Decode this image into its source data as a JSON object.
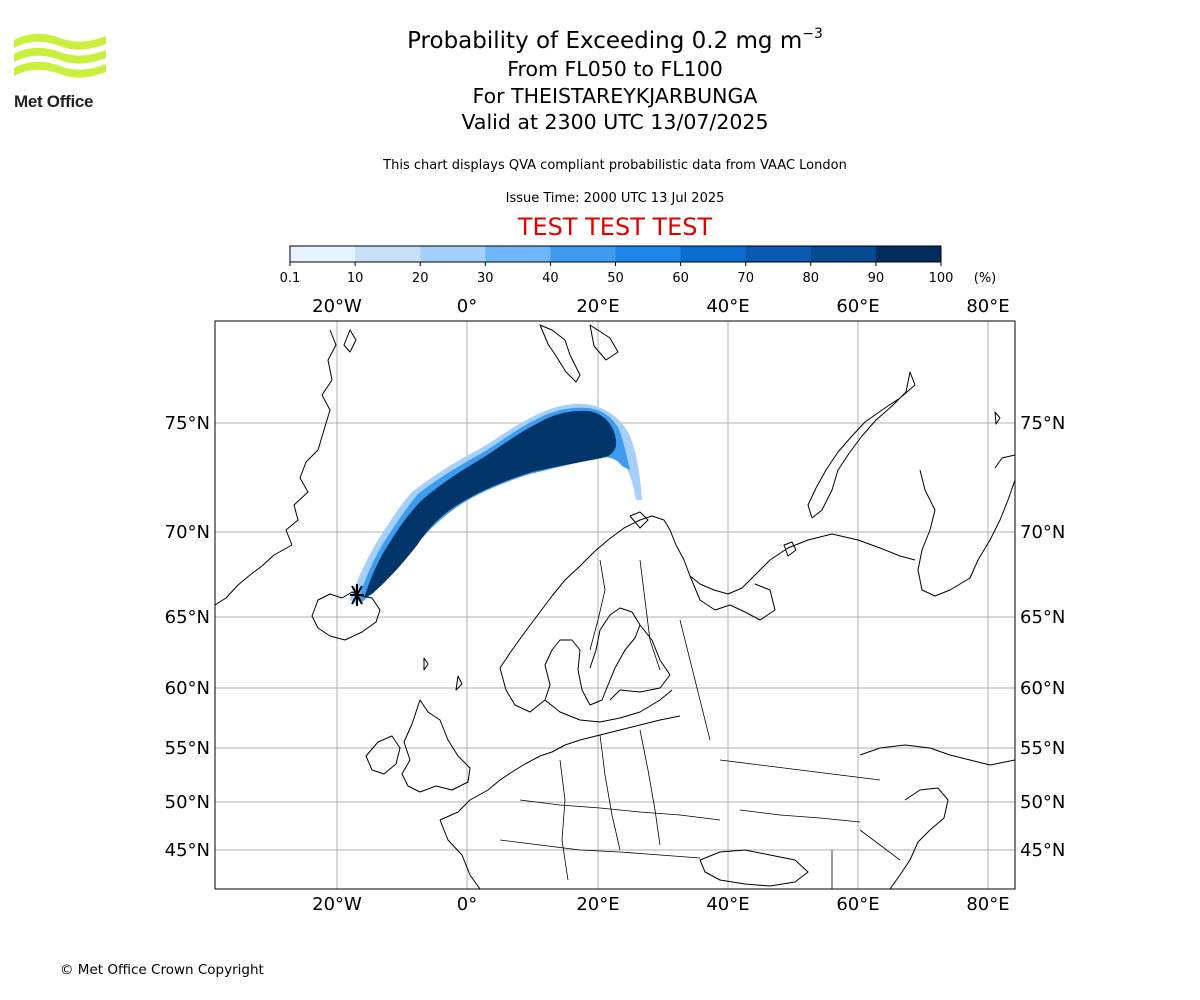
{
  "header": {
    "org_name": "Met Office",
    "title_prefix": "Probability of Exceeding 0.2 mg m",
    "title_exponent": "−3",
    "flight_levels": "From FL050 to FL100",
    "volcano": "For THEISTAREYKJARBUNGA",
    "valid_time": "Valid at 2300 UTC 13/07/2025",
    "description": "This chart displays QVA compliant probabilistic data from VAAC London",
    "issue_time": "Issue Time: 2000 UTC 13 Jul 2025",
    "test_banner": "TEST TEST TEST"
  },
  "legend": {
    "unit": "(%)",
    "ticks": [
      "0.1",
      "10",
      "20",
      "30",
      "40",
      "50",
      "60",
      "70",
      "80",
      "90",
      "100"
    ],
    "colors": [
      "#e6f2ff",
      "#c6e0fa",
      "#a6d0fb",
      "#6fb6f8",
      "#3d9cf0",
      "#1c86ea",
      "#0a6cd0",
      "#0a58b0",
      "#064a92",
      "#022c5e"
    ]
  },
  "map": {
    "lon_labels_top": [
      "20°W",
      "0°",
      "20°E",
      "40°E",
      "60°E",
      "80°E"
    ],
    "lon_labels_bottom": [
      "20°W",
      "0°",
      "20°E",
      "40°E",
      "60°E",
      "80°E"
    ],
    "lat_labels_left": [
      "75°N",
      "70°N",
      "65°N",
      "60°N",
      "55°N",
      "50°N",
      "45°N"
    ],
    "lat_labels_right": [
      "75°N",
      "70°N",
      "65°N",
      "60°N",
      "55°N",
      "50°N",
      "45°N"
    ],
    "gridlines": true,
    "volcano_marker_icon": "volcano-icon",
    "plume_color": "#02366a"
  },
  "footer": {
    "copyright": "© Met Office Crown Copyright"
  }
}
